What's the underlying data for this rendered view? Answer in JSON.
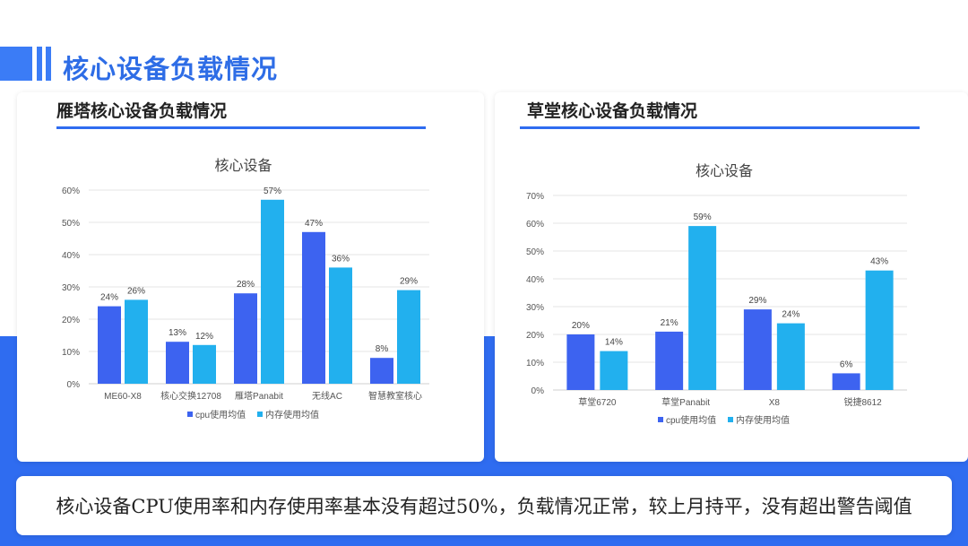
{
  "header": {
    "title": "核心设备负载情况"
  },
  "colors": {
    "cpu": "#3d63f0",
    "mem": "#22b0ee",
    "accent": "#2f6cf0"
  },
  "panels": [
    {
      "title": "雁塔核心设备负载情况"
    },
    {
      "title": "草堂核心设备负载情况"
    }
  ],
  "chart_data": [
    {
      "type": "bar",
      "title": "核心设备",
      "categories": [
        "ME60-X8",
        "核心交换12708",
        "雁塔Panabit",
        "无线AC",
        "智慧教室核心"
      ],
      "series": [
        {
          "name": "cpu使用均值",
          "values": [
            24,
            13,
            28,
            47,
            8
          ]
        },
        {
          "name": "内存使用均值",
          "values": [
            26,
            12,
            57,
            36,
            29
          ]
        }
      ],
      "ylim": [
        0,
        60
      ],
      "yticks": [
        "0%",
        "10%",
        "20%",
        "30%",
        "40%",
        "50%",
        "60%"
      ],
      "grid": true,
      "legend": "bottom"
    },
    {
      "type": "bar",
      "title": "核心设备",
      "categories": [
        "草堂6720",
        "草堂Panabit",
        "X8",
        "锐捷8612"
      ],
      "series": [
        {
          "name": "cpu使用均值",
          "values": [
            20,
            21,
            29,
            6
          ]
        },
        {
          "name": "内存使用均值",
          "values": [
            14,
            59,
            24,
            43
          ]
        }
      ],
      "ylim": [
        0,
        70
      ],
      "yticks": [
        "0%",
        "10%",
        "20%",
        "30%",
        "40%",
        "50%",
        "60%",
        "70%"
      ],
      "grid": true,
      "legend": "bottom"
    }
  ],
  "summary": {
    "text": "核心设备CPU使用率和内存使用率基本没有超过50%，负载情况正常，较上月持平，没有超出警告阈值"
  }
}
